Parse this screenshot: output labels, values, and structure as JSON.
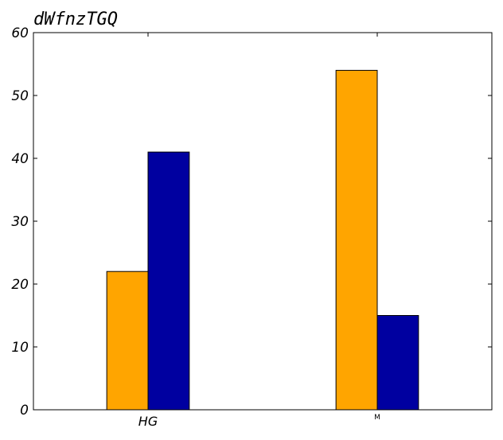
{
  "chart_data": {
    "type": "bar",
    "title": "dWfnzTGQ",
    "xlabel": "",
    "ylabel": "",
    "categories": [
      "HG",
      "M"
    ],
    "series": [
      {
        "color": "#FFA500",
        "values": [
          22,
          54
        ]
      },
      {
        "color": "#0000A0",
        "values": [
          41,
          15
        ]
      }
    ],
    "ylim": [
      0,
      60
    ],
    "yticks": [
      0,
      10,
      20,
      30,
      40,
      50,
      60
    ],
    "grid": false
  }
}
